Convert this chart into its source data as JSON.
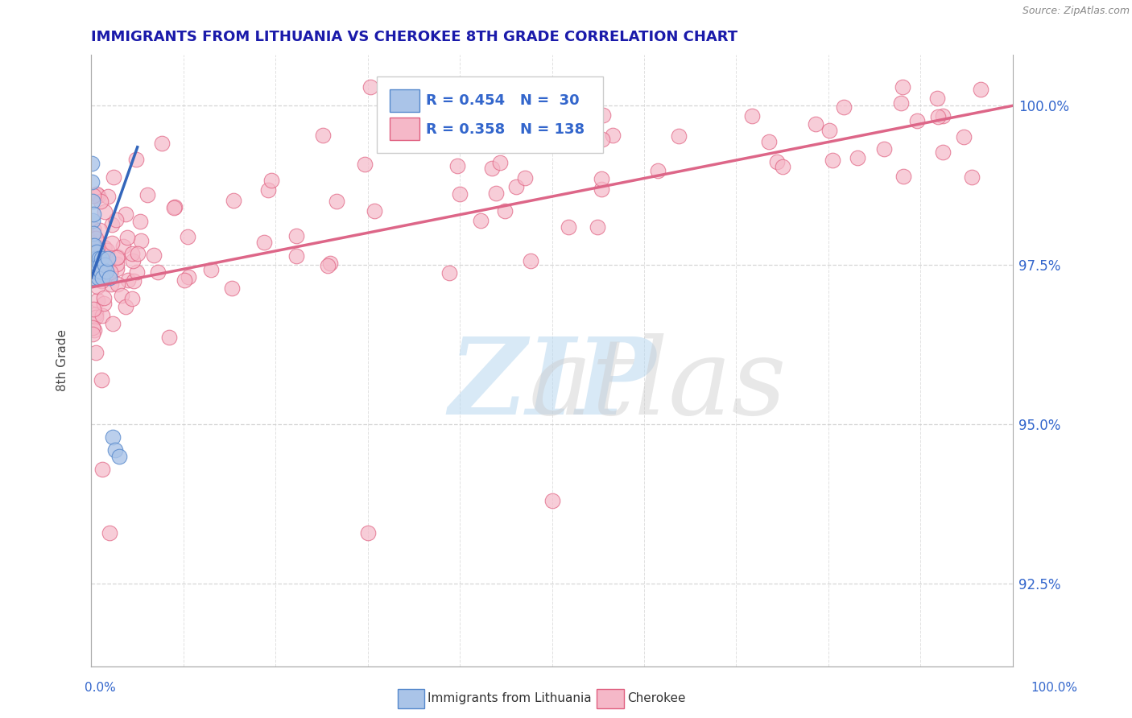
{
  "title": "IMMIGRANTS FROM LITHUANIA VS CHEROKEE 8TH GRADE CORRELATION CHART",
  "source": "Source: ZipAtlas.com",
  "ylabel": "8th Grade",
  "right_yticks": [
    92.5,
    95.0,
    97.5,
    100.0
  ],
  "right_ytick_labels": [
    "92.5%",
    "95.0%",
    "97.5%",
    "100.0%"
  ],
  "legend_blue_text": "R = 0.454   N =  30",
  "legend_pink_text": "R = 0.358   N = 138",
  "legend_bottom_blue": "Immigrants from Lithuania",
  "legend_bottom_pink": "Cherokee",
  "blue_fill": "#aac4e8",
  "blue_edge": "#5588cc",
  "pink_fill": "#f5b8c8",
  "pink_edge": "#e06080",
  "blue_line_color": "#3366bb",
  "pink_line_color": "#dd6688",
  "blue_line": [
    [
      0.0,
      97.3
    ],
    [
      5.0,
      99.35
    ]
  ],
  "pink_line": [
    [
      0.0,
      97.15
    ],
    [
      100.0,
      100.0
    ]
  ],
  "xmin": 0.0,
  "xmax": 100.0,
  "ymin": 91.2,
  "ymax": 100.8,
  "background_color": "#ffffff",
  "grid_color": "#cccccc",
  "title_color": "#1a1aaa",
  "axis_label_color": "#3366cc",
  "source_color": "#888888",
  "legend_box_color": "#dddddd",
  "watermark_zip_color": "#b8d8f0",
  "watermark_atlas_color": "#cccccc"
}
